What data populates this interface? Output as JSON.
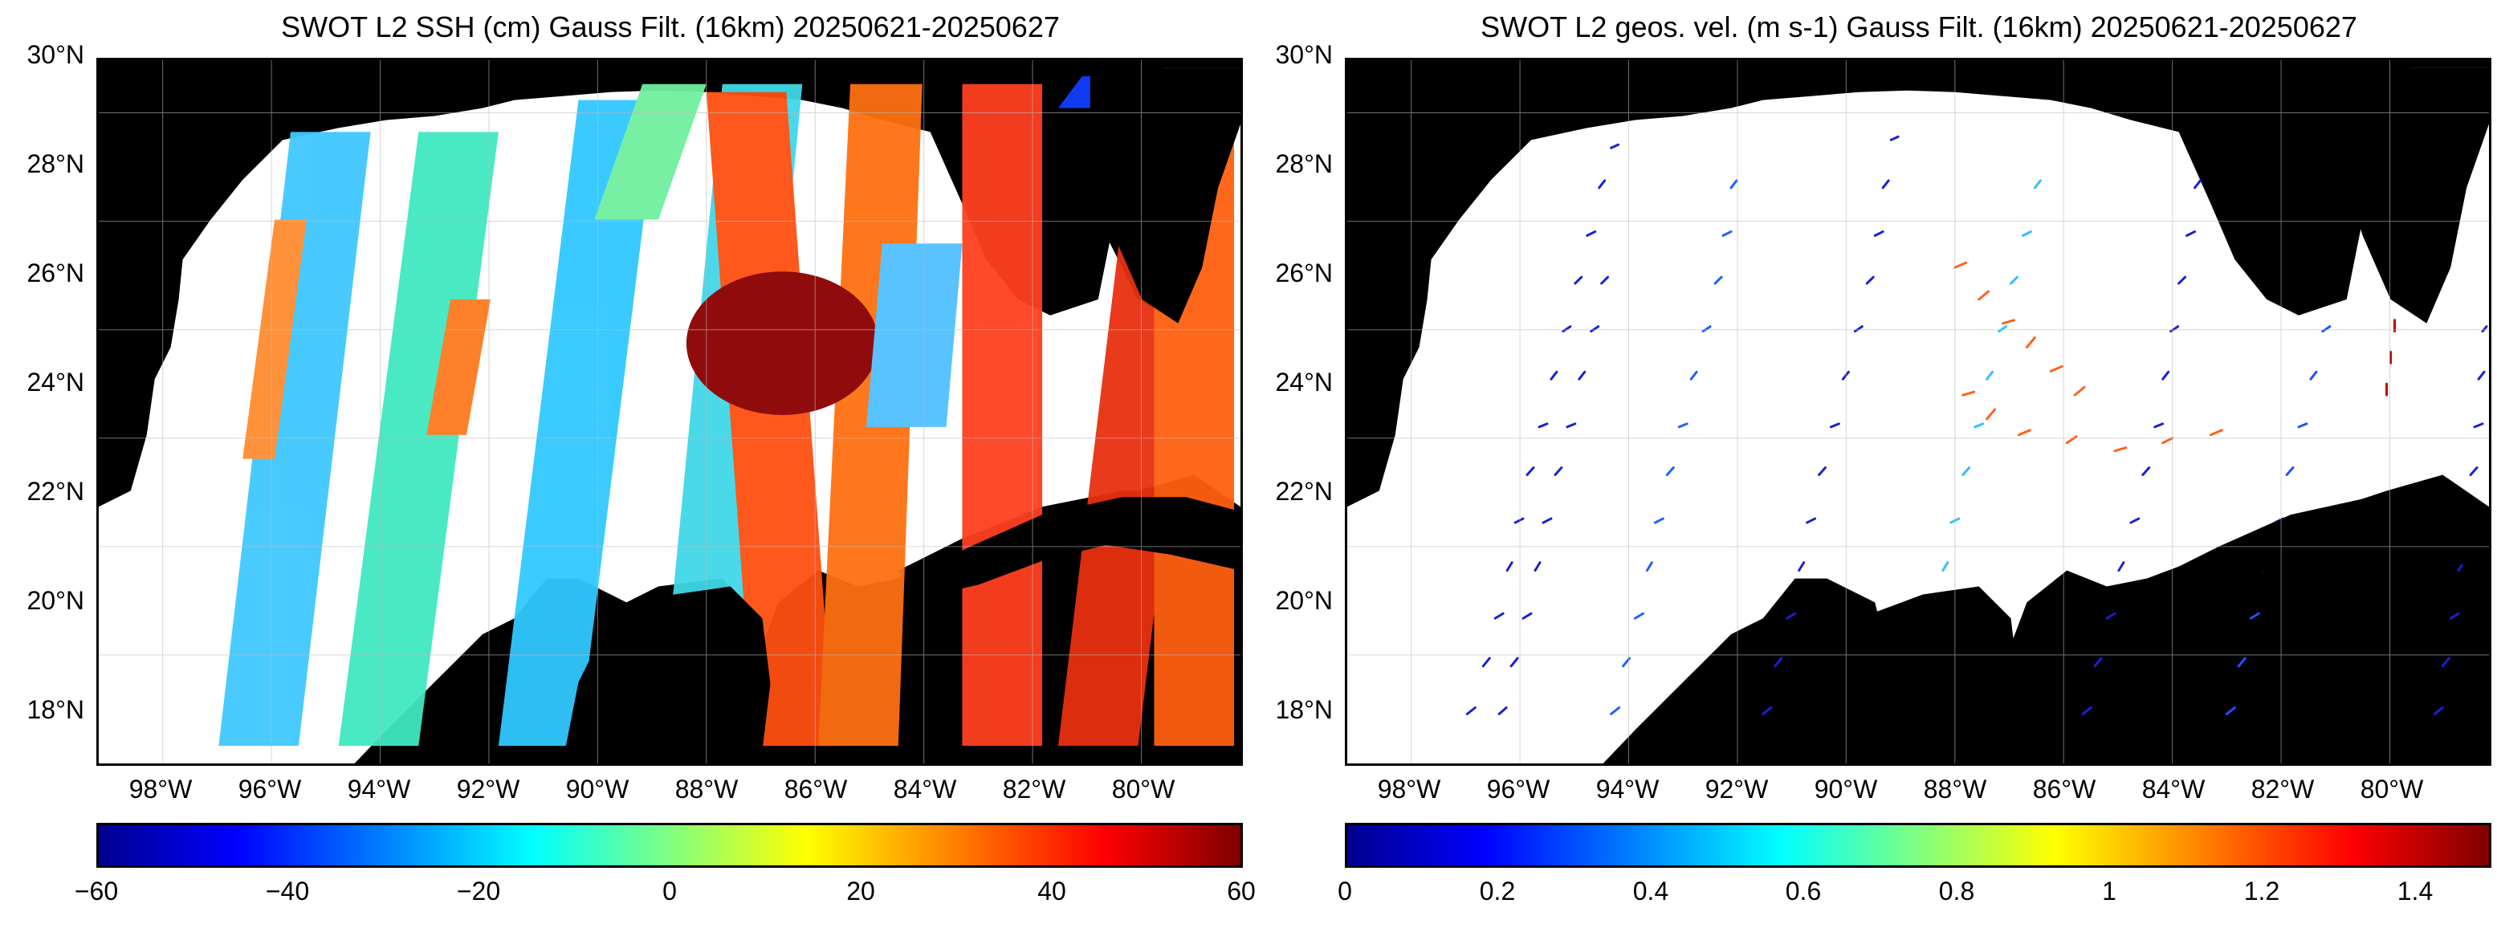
{
  "ssh_panel": {
    "title": "SWOT L2 SSH (cm) Gauss Filt. (16km) 20250621-20250627",
    "lat_ticks": [
      "30°N",
      "28°N",
      "26°N",
      "24°N",
      "22°N",
      "20°N",
      "18°N"
    ],
    "lon_ticks": [
      "98°W",
      "96°W",
      "94°W",
      "92°W",
      "90°W",
      "88°W",
      "86°W",
      "84°W",
      "82°W",
      "80°W"
    ],
    "colorbar_ticks": [
      "−60",
      "−40",
      "−20",
      "0",
      "20",
      "40",
      "60"
    ],
    "colorbar_range": [
      -60,
      60
    ],
    "colormap": "jet"
  },
  "velocity_panel": {
    "title": "SWOT L2 geos. vel. (m s-1) Gauss Filt. (16km) 20250621-20250627",
    "lat_ticks": [
      "30°N",
      "28°N",
      "26°N",
      "24°N",
      "22°N",
      "20°N",
      "18°N"
    ],
    "lon_ticks": [
      "98°W",
      "96°W",
      "94°W",
      "92°W",
      "90°W",
      "88°W",
      "86°W",
      "84°W",
      "82°W",
      "80°W"
    ],
    "colorbar_ticks": [
      "0",
      "0.2",
      "0.4",
      "0.6",
      "0.8",
      "1",
      "1.2",
      "1.4"
    ],
    "colorbar_range": [
      0,
      1.5
    ],
    "colormap": "jet"
  },
  "colors": {
    "land": "#000000",
    "ocean_nodata": "#ffffff",
    "grid": "#bbbbbb"
  }
}
